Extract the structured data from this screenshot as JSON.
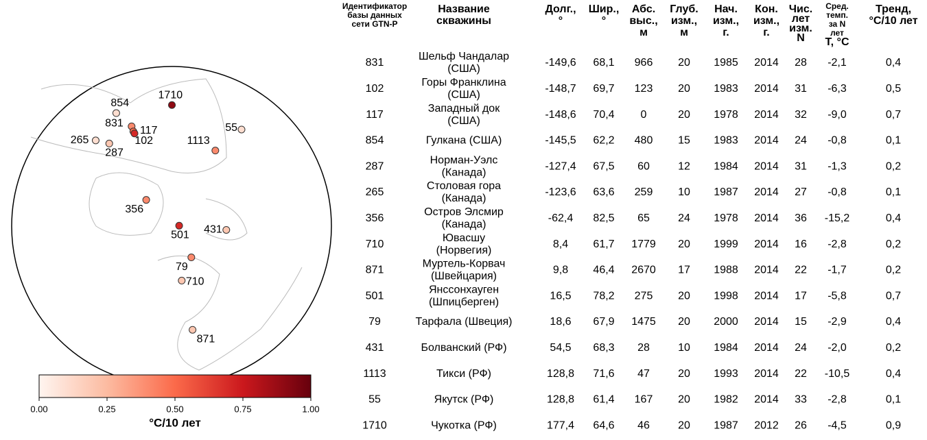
{
  "map": {
    "colorbar": {
      "label": "°C/10 лет",
      "lim": [
        0,
        1
      ],
      "ticks": [
        {
          "value": 0,
          "label": "0.00"
        },
        {
          "value": 0.25,
          "label": "0.25"
        },
        {
          "value": 0.5,
          "label": "0.50"
        },
        {
          "value": 0.75,
          "label": "0.75"
        },
        {
          "value": 1,
          "label": "1.00"
        }
      ]
    }
  },
  "table": {
    "headers": [
      [
        "Идентификатор",
        "базы данных",
        "сети GTN-P"
      ],
      [
        "Название",
        "скважины"
      ],
      [
        "Долг.,",
        "°"
      ],
      [
        "Шир.,",
        "°"
      ],
      [
        "Абс.",
        "выс.,",
        "м"
      ],
      [
        "Глуб.",
        "изм.,",
        "м"
      ],
      [
        "Нач.",
        "изм.,",
        "г."
      ],
      [
        "Кон.",
        "изм.,",
        "г."
      ],
      [
        "Чис.",
        "лет",
        "изм.",
        "N"
      ],
      [
        "Сред.",
        "темп.",
        "за N",
        "лет",
        "Т, °С"
      ],
      [
        "Тренд,",
        "°С/10 лет"
      ]
    ],
    "rows": [
      [
        "831",
        [
          "Шельф Чандалар",
          "(США)"
        ],
        "-149,6",
        "68,1",
        "966",
        "20",
        "1985",
        "2014",
        "28",
        "-2,1",
        "0,4"
      ],
      [
        "102",
        [
          "Горы Франклина",
          "(США)"
        ],
        "-148,7",
        "69,7",
        "123",
        "20",
        "1983",
        "2014",
        "31",
        "-6,3",
        "0,5"
      ],
      [
        "117",
        [
          "Западный док",
          "(США)"
        ],
        "-148,6",
        "70,4",
        "0",
        "20",
        "1978",
        "2014",
        "32",
        "-9,0",
        "0,7"
      ],
      [
        "854",
        [
          "Гулкана (США)"
        ],
        "-145,5",
        "62,2",
        "480",
        "15",
        "1983",
        "2014",
        "24",
        "-0,8",
        "0,1"
      ],
      [
        "287",
        [
          "Норман-Уэлс",
          "(Канада)"
        ],
        "-127,4",
        "67,5",
        "60",
        "12",
        "1984",
        "2014",
        "31",
        "-1,3",
        "0,2"
      ],
      [
        "265",
        [
          "Столовая гора",
          "(Канада)"
        ],
        "-123,6",
        "63,6",
        "259",
        "10",
        "1987",
        "2014",
        "27",
        "-0,8",
        "0,1"
      ],
      [
        "356",
        [
          "Остров Элсмир",
          "(Канада)"
        ],
        "-62,4",
        "82,5",
        "65",
        "24",
        "1978",
        "2014",
        "36",
        "-15,2",
        "0,4"
      ],
      [
        "710",
        [
          "Ювасшу",
          "(Норвегия)"
        ],
        "8,4",
        "61,7",
        "1779",
        "20",
        "1999",
        "2014",
        "16",
        "-2,8",
        "0,2"
      ],
      [
        "871",
        [
          "Муртель-Корвач",
          "(Швейцария)"
        ],
        "9,8",
        "46,4",
        "2670",
        "17",
        "1988",
        "2014",
        "22",
        "-1,7",
        "0,2"
      ],
      [
        "501",
        [
          "Янссонхауген",
          "(Шпицберген)"
        ],
        "16,5",
        "78,2",
        "275",
        "20",
        "1998",
        "2014",
        "17",
        "-5,8",
        "0,7"
      ],
      [
        "79",
        [
          "Тарфала (Швеция)"
        ],
        "18,6",
        "67,9",
        "1475",
        "20",
        "2000",
        "2014",
        "15",
        "-2,9",
        "0,4"
      ],
      [
        "431",
        [
          "Болванский (РФ)"
        ],
        "54,5",
        "68,3",
        "28",
        "10",
        "1984",
        "2014",
        "24",
        "-2,0",
        "0,2"
      ],
      [
        "1113",
        [
          "Тикси (РФ)"
        ],
        "128,8",
        "71,6",
        "47",
        "20",
        "1993",
        "2014",
        "22",
        "-10,5",
        "0,4"
      ],
      [
        "55",
        [
          "Якутск (РФ)"
        ],
        "128,8",
        "61,4",
        "167",
        "20",
        "1982",
        "2014",
        "33",
        "-2,8",
        "0,1"
      ],
      [
        "1710",
        [
          "Чукотка (РФ)"
        ],
        "177,4",
        "64,6",
        "46",
        "20",
        "1987",
        "2012",
        "26",
        "-4,5",
        "0,9"
      ]
    ]
  }
}
